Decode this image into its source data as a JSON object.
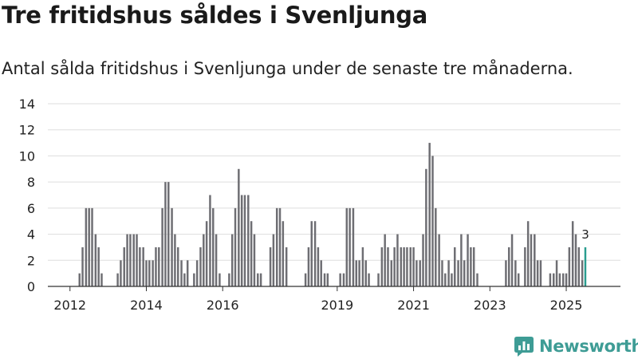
{
  "title": "Tre fritidshus såldes i Svenljunga",
  "subtitle": "Antal sålda fritidshus i Svenljunga under de senaste tre månaderna.",
  "logo": {
    "text": "Newsworthy",
    "brand_color": "#3e9c95"
  },
  "colors": {
    "bar": "#6e6e73",
    "highlight": "#2a9d8f",
    "grid": "#dddddd",
    "axis": "#333333",
    "text": "#222222"
  },
  "chart_data": {
    "type": "bar",
    "title": "Tre fritidshus såldes i Svenljunga",
    "xlabel": "",
    "ylabel": "",
    "ylim": [
      0,
      14
    ],
    "yticks": [
      0,
      2,
      4,
      6,
      8,
      10,
      12,
      14
    ],
    "xlim": [
      2011.42,
      2026.42
    ],
    "xticks": [
      2012,
      2014,
      2016,
      2019,
      2021,
      2023,
      2025
    ],
    "grid": true,
    "series": [
      {
        "name": "Antal sålda fritidshus",
        "bars": [
          {
            "x": 2011.75,
            "value": 0
          },
          {
            "x": 2011.83,
            "value": 0
          },
          {
            "x": 2011.92,
            "value": 0
          },
          {
            "x": 2012.0,
            "value": 0
          },
          {
            "x": 2012.08,
            "value": 0
          },
          {
            "x": 2012.17,
            "value": 0
          },
          {
            "x": 2012.25,
            "value": 1
          },
          {
            "x": 2012.33,
            "value": 3
          },
          {
            "x": 2012.42,
            "value": 6
          },
          {
            "x": 2012.5,
            "value": 6
          },
          {
            "x": 2012.58,
            "value": 6
          },
          {
            "x": 2012.67,
            "value": 4
          },
          {
            "x": 2012.75,
            "value": 3
          },
          {
            "x": 2012.83,
            "value": 1
          },
          {
            "x": 2013.25,
            "value": 1
          },
          {
            "x": 2013.33,
            "value": 2
          },
          {
            "x": 2013.42,
            "value": 3
          },
          {
            "x": 2013.5,
            "value": 4
          },
          {
            "x": 2013.58,
            "value": 4
          },
          {
            "x": 2013.67,
            "value": 4
          },
          {
            "x": 2013.75,
            "value": 4
          },
          {
            "x": 2013.83,
            "value": 3
          },
          {
            "x": 2013.92,
            "value": 3
          },
          {
            "x": 2014.0,
            "value": 2
          },
          {
            "x": 2014.08,
            "value": 2
          },
          {
            "x": 2014.17,
            "value": 2
          },
          {
            "x": 2014.25,
            "value": 3
          },
          {
            "x": 2014.33,
            "value": 3
          },
          {
            "x": 2014.42,
            "value": 6
          },
          {
            "x": 2014.5,
            "value": 8
          },
          {
            "x": 2014.58,
            "value": 8
          },
          {
            "x": 2014.67,
            "value": 6
          },
          {
            "x": 2014.75,
            "value": 4
          },
          {
            "x": 2014.83,
            "value": 3
          },
          {
            "x": 2014.92,
            "value": 2
          },
          {
            "x": 2015.0,
            "value": 1
          },
          {
            "x": 2015.08,
            "value": 2
          },
          {
            "x": 2015.25,
            "value": 1
          },
          {
            "x": 2015.33,
            "value": 2
          },
          {
            "x": 2015.42,
            "value": 3
          },
          {
            "x": 2015.5,
            "value": 4
          },
          {
            "x": 2015.58,
            "value": 5
          },
          {
            "x": 2015.67,
            "value": 7
          },
          {
            "x": 2015.75,
            "value": 6
          },
          {
            "x": 2015.83,
            "value": 4
          },
          {
            "x": 2015.92,
            "value": 1
          },
          {
            "x": 2016.17,
            "value": 1
          },
          {
            "x": 2016.25,
            "value": 4
          },
          {
            "x": 2016.33,
            "value": 6
          },
          {
            "x": 2016.42,
            "value": 9
          },
          {
            "x": 2016.5,
            "value": 7
          },
          {
            "x": 2016.58,
            "value": 7
          },
          {
            "x": 2016.67,
            "value": 7
          },
          {
            "x": 2016.75,
            "value": 5
          },
          {
            "x": 2016.83,
            "value": 4
          },
          {
            "x": 2016.92,
            "value": 1
          },
          {
            "x": 2017.0,
            "value": 1
          },
          {
            "x": 2017.25,
            "value": 3
          },
          {
            "x": 2017.33,
            "value": 4
          },
          {
            "x": 2017.42,
            "value": 6
          },
          {
            "x": 2017.5,
            "value": 6
          },
          {
            "x": 2017.58,
            "value": 5
          },
          {
            "x": 2017.67,
            "value": 3
          },
          {
            "x": 2018.17,
            "value": 1
          },
          {
            "x": 2018.25,
            "value": 3
          },
          {
            "x": 2018.33,
            "value": 5
          },
          {
            "x": 2018.42,
            "value": 5
          },
          {
            "x": 2018.5,
            "value": 3
          },
          {
            "x": 2018.58,
            "value": 2
          },
          {
            "x": 2018.67,
            "value": 1
          },
          {
            "x": 2018.75,
            "value": 1
          },
          {
            "x": 2019.08,
            "value": 1
          },
          {
            "x": 2019.17,
            "value": 1
          },
          {
            "x": 2019.25,
            "value": 6
          },
          {
            "x": 2019.33,
            "value": 6
          },
          {
            "x": 2019.42,
            "value": 6
          },
          {
            "x": 2019.5,
            "value": 2
          },
          {
            "x": 2019.58,
            "value": 2
          },
          {
            "x": 2019.67,
            "value": 3
          },
          {
            "x": 2019.75,
            "value": 2
          },
          {
            "x": 2019.83,
            "value": 1
          },
          {
            "x": 2020.08,
            "value": 1
          },
          {
            "x": 2020.17,
            "value": 3
          },
          {
            "x": 2020.25,
            "value": 4
          },
          {
            "x": 2020.33,
            "value": 3
          },
          {
            "x": 2020.42,
            "value": 2
          },
          {
            "x": 2020.5,
            "value": 3
          },
          {
            "x": 2020.58,
            "value": 4
          },
          {
            "x": 2020.67,
            "value": 3
          },
          {
            "x": 2020.75,
            "value": 3
          },
          {
            "x": 2020.83,
            "value": 3
          },
          {
            "x": 2020.92,
            "value": 3
          },
          {
            "x": 2021.0,
            "value": 3
          },
          {
            "x": 2021.08,
            "value": 2
          },
          {
            "x": 2021.17,
            "value": 2
          },
          {
            "x": 2021.25,
            "value": 4
          },
          {
            "x": 2021.33,
            "value": 9
          },
          {
            "x": 2021.42,
            "value": 11
          },
          {
            "x": 2021.5,
            "value": 10
          },
          {
            "x": 2021.58,
            "value": 6
          },
          {
            "x": 2021.67,
            "value": 4
          },
          {
            "x": 2021.75,
            "value": 2
          },
          {
            "x": 2021.83,
            "value": 1
          },
          {
            "x": 2021.92,
            "value": 2
          },
          {
            "x": 2022.0,
            "value": 1
          },
          {
            "x": 2022.08,
            "value": 3
          },
          {
            "x": 2022.17,
            "value": 2
          },
          {
            "x": 2022.25,
            "value": 4
          },
          {
            "x": 2022.33,
            "value": 2
          },
          {
            "x": 2022.42,
            "value": 4
          },
          {
            "x": 2022.5,
            "value": 3
          },
          {
            "x": 2022.58,
            "value": 3
          },
          {
            "x": 2022.67,
            "value": 1
          },
          {
            "x": 2023.42,
            "value": 2
          },
          {
            "x": 2023.5,
            "value": 3
          },
          {
            "x": 2023.58,
            "value": 4
          },
          {
            "x": 2023.67,
            "value": 2
          },
          {
            "x": 2023.75,
            "value": 1
          },
          {
            "x": 2023.92,
            "value": 3
          },
          {
            "x": 2024.0,
            "value": 5
          },
          {
            "x": 2024.08,
            "value": 4
          },
          {
            "x": 2024.17,
            "value": 4
          },
          {
            "x": 2024.25,
            "value": 2
          },
          {
            "x": 2024.33,
            "value": 2
          },
          {
            "x": 2024.58,
            "value": 1
          },
          {
            "x": 2024.67,
            "value": 1
          },
          {
            "x": 2024.75,
            "value": 2
          },
          {
            "x": 2024.83,
            "value": 1
          },
          {
            "x": 2024.92,
            "value": 1
          },
          {
            "x": 2025.0,
            "value": 1
          },
          {
            "x": 2025.08,
            "value": 3
          },
          {
            "x": 2025.17,
            "value": 5
          },
          {
            "x": 2025.25,
            "value": 4
          },
          {
            "x": 2025.33,
            "value": 3
          },
          {
            "x": 2025.42,
            "value": 2
          },
          {
            "x": 2025.5,
            "value": 3,
            "highlight": true
          }
        ]
      }
    ],
    "annotations": [
      {
        "x": 2025.5,
        "text": "3"
      }
    ]
  }
}
